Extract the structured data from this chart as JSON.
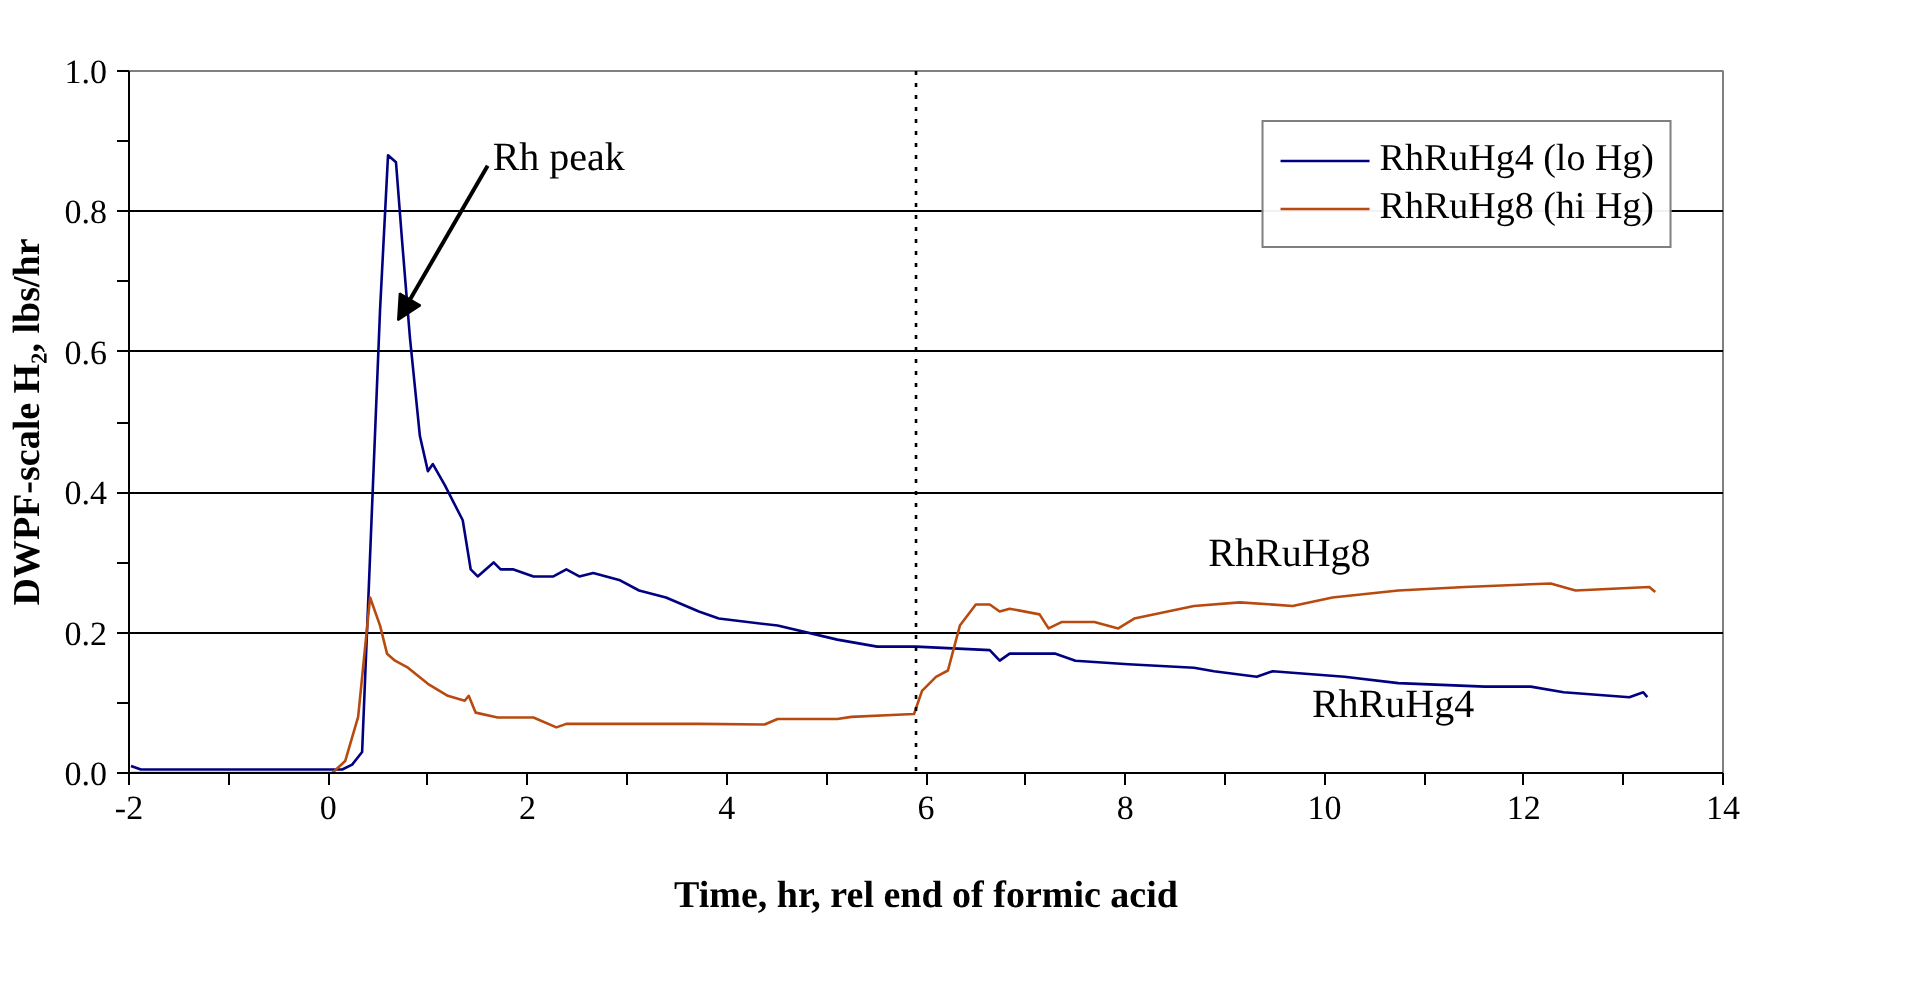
{
  "chart_data": {
    "type": "line",
    "xlabel": "Time, hr, rel end of formic acid",
    "ylabel": "DWPF-scale H₂, lbs/hr",
    "xlim": [
      -2,
      14
    ],
    "ylim": [
      0,
      1
    ],
    "xticks": [
      -2,
      {
        "value": -1,
        "label": null
      },
      0,
      {
        "value": 1,
        "label": null
      },
      2,
      {
        "value": 3,
        "label": null
      },
      4,
      {
        "value": 5,
        "label": null
      },
      6,
      {
        "value": 7,
        "label": null
      },
      8,
      {
        "value": 9,
        "label": null
      },
      10,
      {
        "value": 11,
        "label": null
      },
      12,
      {
        "value": 13,
        "label": null
      },
      14
    ],
    "yticks": [
      {
        "value": 0,
        "label": "0.0"
      },
      {
        "value": 0.1,
        "label": null
      },
      {
        "value": 0.2,
        "label": "0.2"
      },
      {
        "value": 0.3,
        "label": null
      },
      {
        "value": 0.4,
        "label": "0.4"
      },
      {
        "value": 0.5,
        "label": null
      },
      {
        "value": 0.6,
        "label": "0.6"
      },
      {
        "value": 0.7,
        "label": null
      },
      {
        "value": 0.8,
        "label": "0.8"
      },
      {
        "value": 0.9,
        "label": null
      },
      {
        "value": 1.0,
        "label": "1.0"
      }
    ],
    "grid": "y",
    "legend": "top right",
    "line_style": "solid",
    "marker": "none",
    "series": [
      {
        "name": "RhRuHg4 (lo Hg)",
        "color": "#000080",
        "x": [
          -1.98,
          -1.88,
          0.14,
          0.24,
          0.34,
          0.44,
          0.52,
          0.6,
          0.68,
          0.74,
          0.82,
          0.92,
          1.0,
          1.05,
          1.17,
          1.35,
          1.43,
          1.5,
          1.66,
          1.73,
          1.86,
          2.06,
          2.26,
          2.39,
          2.52,
          2.66,
          2.92,
          3.12,
          3.39,
          3.72,
          3.92,
          4.51,
          5.11,
          5.51,
          5.9,
          6.64,
          6.74,
          6.84,
          7.3,
          7.5,
          8.03,
          8.69,
          8.89,
          9.32,
          9.48,
          10.2,
          10.74,
          11.61,
          12.07,
          12.4,
          13.06,
          13.2,
          13.24
        ],
        "values": [
          0.01,
          0.005,
          0.005,
          0.012,
          0.03,
          0.38,
          0.66,
          0.88,
          0.87,
          0.76,
          0.62,
          0.48,
          0.43,
          0.44,
          0.41,
          0.36,
          0.29,
          0.28,
          0.3,
          0.29,
          0.29,
          0.28,
          0.28,
          0.29,
          0.28,
          0.285,
          0.275,
          0.26,
          0.25,
          0.23,
          0.22,
          0.21,
          0.19,
          0.18,
          0.18,
          0.175,
          0.16,
          0.17,
          0.17,
          0.16,
          0.155,
          0.15,
          0.145,
          0.137,
          0.145,
          0.137,
          0.128,
          0.123,
          0.123,
          0.115,
          0.108,
          0.115,
          0.108
        ]
      },
      {
        "name": "RhRuHg8 (hi Hg)",
        "color": "#b84a10",
        "x": [
          -1.98,
          0.04,
          0.17,
          0.3,
          0.42,
          0.52,
          0.59,
          0.67,
          0.8,
          1.0,
          1.2,
          1.37,
          1.41,
          1.48,
          1.7,
          2.06,
          2.29,
          2.39,
          3.72,
          4.38,
          4.51,
          5.11,
          5.25,
          5.71,
          5.88,
          5.96,
          6.1,
          6.22,
          6.34,
          6.5,
          6.64,
          6.74,
          6.84,
          7.14,
          7.23,
          7.36,
          7.69,
          7.93,
          8.09,
          8.69,
          9.15,
          9.68,
          10.08,
          10.74,
          11.41,
          12.27,
          12.52,
          13.26,
          13.32
        ],
        "values": [
          0.0,
          0.0,
          0.017,
          0.08,
          0.25,
          0.21,
          0.17,
          0.16,
          0.15,
          0.127,
          0.11,
          0.103,
          0.11,
          0.086,
          0.079,
          0.079,
          0.065,
          0.07,
          0.07,
          0.069,
          0.077,
          0.077,
          0.08,
          0.083,
          0.084,
          0.117,
          0.137,
          0.146,
          0.21,
          0.24,
          0.24,
          0.23,
          0.234,
          0.226,
          0.206,
          0.215,
          0.215,
          0.206,
          0.22,
          0.238,
          0.243,
          0.238,
          0.25,
          0.26,
          0.265,
          0.27,
          0.26,
          0.265,
          0.258
        ]
      }
    ],
    "ref_lines": [
      {
        "axis": "x",
        "value": 5.9,
        "label": null,
        "color": "#000000",
        "line_style": "dotted"
      }
    ],
    "annotations": [
      {
        "text": "Rh peak",
        "x": 0.7,
        "y": 0.645
      },
      "RhRuHg8",
      "RhRuHg4"
    ]
  }
}
